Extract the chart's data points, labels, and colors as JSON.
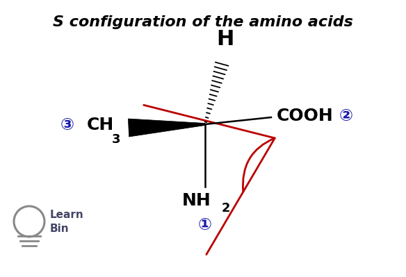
{
  "title": "S configuration of the amino acids",
  "title_fontsize": 16,
  "bg_color": "#ffffff",
  "h_label": "H",
  "cooh_label": "COOH",
  "ch3_label": "CH",
  "ch3_sub": "3",
  "nh2_label": "NH",
  "nh2_sub": "2",
  "num1": "①",
  "num2": "②",
  "num3": "③",
  "label_color_black": "#000000",
  "label_color_blue": "#1a1aaa",
  "arrow_color": "#bb0000",
  "logo_color": "#888888",
  "logo_text_color": "#444466"
}
